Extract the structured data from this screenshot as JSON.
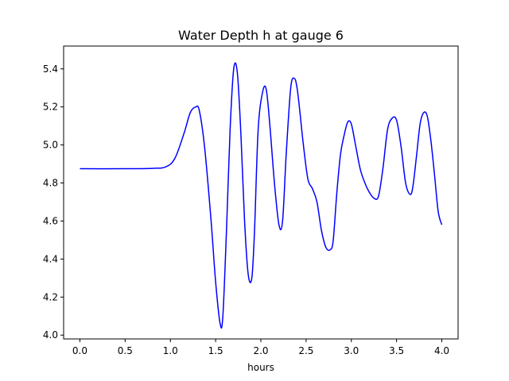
{
  "chart_data": {
    "type": "line",
    "title": "Water Depth h at gauge 6",
    "xlabel": "hours",
    "ylabel": "",
    "xlim": [
      -0.18,
      4.18
    ],
    "ylim": [
      3.98,
      5.52
    ],
    "xticks": [
      0.0,
      0.5,
      1.0,
      1.5,
      2.0,
      2.5,
      3.0,
      3.5,
      4.0
    ],
    "xtick_labels": [
      "0.0",
      "0.5",
      "1.0",
      "1.5",
      "2.0",
      "2.5",
      "3.0",
      "3.5",
      "4.0"
    ],
    "yticks": [
      4.0,
      4.2,
      4.4,
      4.6,
      4.8,
      5.0,
      5.2,
      5.4
    ],
    "ytick_labels": [
      "4.0",
      "4.2",
      "4.4",
      "4.6",
      "4.8",
      "5.0",
      "5.2",
      "5.4"
    ],
    "grid": false,
    "series": [
      {
        "color": "#0000ff",
        "x": [
          0.0,
          0.5,
          0.8,
          0.95,
          1.05,
          1.15,
          1.22,
          1.28,
          1.32,
          1.38,
          1.45,
          1.5,
          1.55,
          1.58,
          1.62,
          1.66,
          1.7,
          1.74,
          1.78,
          1.82,
          1.86,
          1.9,
          1.93,
          1.97,
          2.02,
          2.06,
          2.1,
          2.15,
          2.2,
          2.24,
          2.28,
          2.33,
          2.37,
          2.4,
          2.43,
          2.47,
          2.52,
          2.57,
          2.62,
          2.67,
          2.72,
          2.77,
          2.8,
          2.84,
          2.88,
          2.92,
          2.96,
          3.0,
          3.05,
          3.1,
          3.15,
          3.2,
          3.25,
          3.3,
          3.35,
          3.4,
          3.45,
          3.5,
          3.55,
          3.6,
          3.65,
          3.68,
          3.72,
          3.76,
          3.8,
          3.84,
          3.88,
          3.92,
          3.96,
          4.0
        ],
        "y": [
          4.875,
          4.875,
          4.877,
          4.885,
          4.93,
          5.06,
          5.17,
          5.2,
          5.18,
          4.98,
          4.6,
          4.28,
          4.06,
          4.1,
          4.55,
          5.08,
          5.4,
          5.38,
          5.05,
          4.6,
          4.32,
          4.3,
          4.55,
          5.08,
          5.28,
          5.29,
          5.1,
          4.8,
          4.58,
          4.6,
          4.95,
          5.3,
          5.35,
          5.3,
          5.18,
          5.0,
          4.82,
          4.77,
          4.7,
          4.55,
          4.46,
          4.45,
          4.5,
          4.75,
          4.95,
          5.05,
          5.12,
          5.11,
          4.99,
          4.87,
          4.8,
          4.75,
          4.72,
          4.73,
          4.88,
          5.08,
          5.14,
          5.13,
          4.99,
          4.8,
          4.74,
          4.78,
          4.94,
          5.11,
          5.17,
          5.15,
          5.02,
          4.84,
          4.65,
          4.58
        ]
      }
    ]
  }
}
